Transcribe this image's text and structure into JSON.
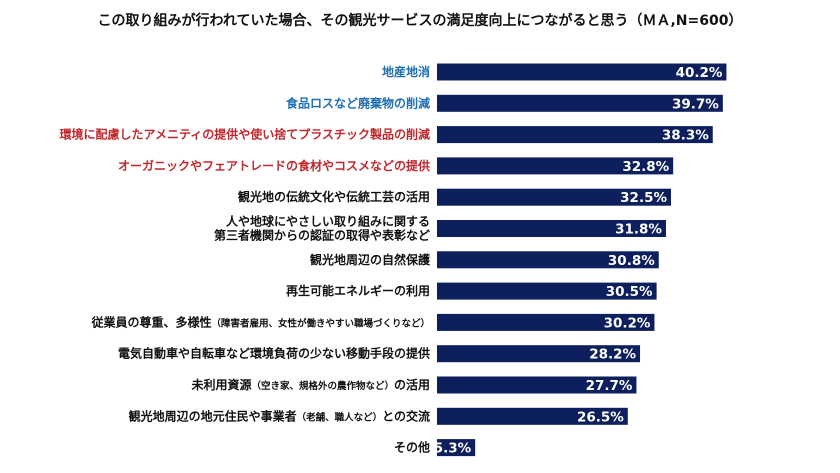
{
  "chart_data": {
    "type": "bar",
    "orientation": "horizontal",
    "title": "この取り組みが行われていた場合、その観光サービスの満足度向上につながると思う（ＭＡ,N=600）",
    "xlim": [
      0,
      100
    ],
    "grid": false,
    "bar_color": "#0d1f5c",
    "categories": [
      {
        "lines": [
          {
            "text": "地産地消"
          }
        ],
        "color": "#1f6fb2"
      },
      {
        "lines": [
          {
            "text": "食品ロスなど廃棄物の削減"
          }
        ],
        "color": "#1f6fb2"
      },
      {
        "lines": [
          {
            "text": "環境に配慮したアメニティの提供や使い捨てプラスチック製品の削減"
          }
        ],
        "color": "#c0282d"
      },
      {
        "lines": [
          {
            "text": "オーガニックやフェアトレードの食材やコスメなどの提供"
          }
        ],
        "color": "#c0282d"
      },
      {
        "lines": [
          {
            "text": "観光地の伝統文化や伝統工芸の活用"
          }
        ],
        "color": "#111111"
      },
      {
        "lines": [
          {
            "text": "人や地球にやさしい取り組みに関する"
          },
          {
            "text": "第三者機関からの認証の取得や表彰など"
          }
        ],
        "color": "#111111"
      },
      {
        "lines": [
          {
            "text": "観光地周辺の自然保護"
          }
        ],
        "color": "#111111"
      },
      {
        "lines": [
          {
            "text": "再生可能エネルギーの利用"
          }
        ],
        "color": "#111111"
      },
      {
        "lines": [
          {
            "text": "従業員の尊重、多様性",
            "note": "（障害者雇用、女性が働きやすい職場づくりなど）"
          }
        ],
        "color": "#111111"
      },
      {
        "lines": [
          {
            "text": "電気自動車や自転車など環境負荷の少ない移動手段の提供"
          }
        ],
        "color": "#111111"
      },
      {
        "lines": [
          {
            "text": "未利用資源",
            "note": "（空き家、規格外の農作物など）",
            "tail": "の活用"
          }
        ],
        "color": "#111111"
      },
      {
        "lines": [
          {
            "text": "観光地周辺の地元住民や事業者",
            "note": "（老舗、職人など）",
            "tail": "との交流"
          }
        ],
        "color": "#111111"
      },
      {
        "lines": [
          {
            "text": "その他"
          }
        ],
        "color": "#111111"
      }
    ],
    "values": [
      40.2,
      39.7,
      38.3,
      32.8,
      32.5,
      31.8,
      30.8,
      30.5,
      30.2,
      28.2,
      27.7,
      26.5,
      5.3
    ],
    "value_labels": [
      "40.2%",
      "39.7%",
      "38.3%",
      "32.8%",
      "32.5%",
      "31.8%",
      "30.8%",
      "30.5%",
      "30.2%",
      "28.2%",
      "27.7%",
      "26.5%",
      "5.3%"
    ]
  }
}
